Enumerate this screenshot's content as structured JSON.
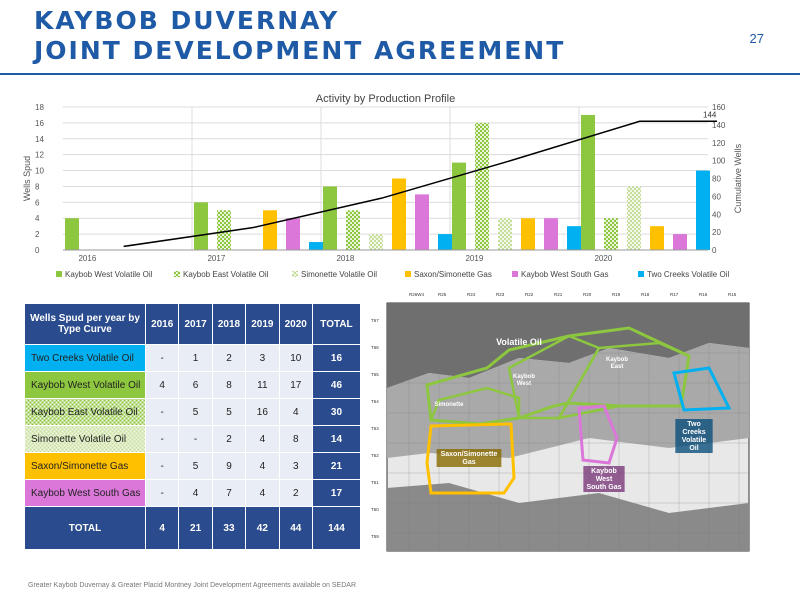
{
  "header": {
    "title_line1": "KAYBOB DUVERNAY",
    "title_line2": "JOINT DEVELOPMENT AGREEMENT",
    "page_number": "27"
  },
  "footnote": "Greater Kaybob Duvernay & Greater Placid Montney Joint Development Agreements available on SEDAR",
  "chart_data": {
    "type": "bar",
    "title": "Activity by Production Profile",
    "ylabel": "Wells Spud",
    "y2label": "Cumulative Wells",
    "categories": [
      "2016",
      "2017",
      "2018",
      "2019",
      "2020"
    ],
    "ylim": [
      0,
      18
    ],
    "y_ticks": [
      0,
      2,
      4,
      6,
      8,
      10,
      12,
      14,
      16,
      18
    ],
    "y2lim": [
      0,
      160
    ],
    "y2_ticks": [
      0,
      20,
      40,
      60,
      80,
      100,
      120,
      140,
      160
    ],
    "series": [
      {
        "name": "Kaybob West Volatile Oil",
        "values": [
          4,
          6,
          8,
          11,
          17
        ],
        "color": "#8dc63f"
      },
      {
        "name": "Kaybob East Volatile Oil",
        "values": [
          null,
          5,
          5,
          16,
          4
        ],
        "color": "#8dc63f",
        "pattern": "checker"
      },
      {
        "name": "Simonette Volatile Oil",
        "values": [
          null,
          null,
          2,
          4,
          8
        ],
        "color": "#c5df9a",
        "pattern": "checker"
      },
      {
        "name": "Saxon/Simonette Gas",
        "values": [
          null,
          5,
          9,
          4,
          3
        ],
        "color": "#ffc000"
      },
      {
        "name": "Kaybob West South Gas",
        "values": [
          null,
          4,
          7,
          4,
          2
        ],
        "color": "#da77d9"
      },
      {
        "name": "Two Creeks Volatile Oil",
        "values": [
          null,
          1,
          2,
          3,
          10
        ],
        "color": "#00b0f0"
      }
    ],
    "cumulative_line": {
      "x": [
        2016,
        2017,
        2018,
        2019,
        2020,
        2020.6
      ],
      "values": [
        4,
        25,
        58,
        100,
        144,
        144
      ],
      "label": "144"
    },
    "legend_position": "bottom"
  },
  "table": {
    "header_name": "Wells Spud per year by Type Curve",
    "columns": [
      "2016",
      "2017",
      "2018",
      "2019",
      "2020",
      "TOTAL"
    ],
    "rows": [
      {
        "name": "Two Creeks Volatile Oil",
        "name_bg": "#00b0f0",
        "pattern": "",
        "values": [
          "-",
          "1",
          "2",
          "3",
          "10"
        ],
        "total": "16"
      },
      {
        "name": "Kaybob West Volatile Oil",
        "name_bg": "#8dc63f",
        "pattern": "",
        "values": [
          "4",
          "6",
          "8",
          "11",
          "17"
        ],
        "total": "46"
      },
      {
        "name": "Kaybob East Volatile Oil",
        "name_bg": "#8dc63f",
        "pattern": "checker",
        "values": [
          "-",
          "5",
          "5",
          "16",
          "4"
        ],
        "total": "30"
      },
      {
        "name": "Simonette Volatile Oil",
        "name_bg": "#c5df9a",
        "pattern": "checker",
        "values": [
          "-",
          "-",
          "2",
          "4",
          "8"
        ],
        "total": "14"
      },
      {
        "name": "Saxon/Simonette Gas",
        "name_bg": "#ffc000",
        "pattern": "",
        "values": [
          "-",
          "5",
          "9",
          "4",
          "3"
        ],
        "total": "21"
      },
      {
        "name": "Kaybob West South Gas",
        "name_bg": "#da77d9",
        "pattern": "",
        "values": [
          "-",
          "4",
          "7",
          "4",
          "2"
        ],
        "total": "17"
      }
    ],
    "footer_label": "TOTAL",
    "footer_values": [
      "4",
      "21",
      "33",
      "42",
      "44"
    ],
    "footer_total": "144"
  },
  "map": {
    "range_labels": [
      "R26W4",
      "R25",
      "R24",
      "R23",
      "R22",
      "R21",
      "R20",
      "R19",
      "R18",
      "R17",
      "R16",
      "R15"
    ],
    "township_labels": [
      "T67",
      "T66",
      "T65",
      "T64",
      "T63",
      "T62",
      "T61",
      "T60",
      "T59"
    ],
    "areas": [
      {
        "label": "Volatile Oil",
        "color": "#8dc63f"
      },
      {
        "label": "Kaybob\nEast",
        "color": "#8dc63f"
      },
      {
        "label": "Kaybob\nWest",
        "color": "#8dc63f"
      },
      {
        "label": "Simonette",
        "color": "#8dc63f"
      },
      {
        "label": "Saxon/Simonette\nGas",
        "color": "#ffc000"
      },
      {
        "label": "Kaybob\nWest\nSouth Gas",
        "color": "#da77d9"
      },
      {
        "label": "Two\nCreeks\nVolatile\nOil",
        "color": "#00b0f0"
      }
    ]
  }
}
